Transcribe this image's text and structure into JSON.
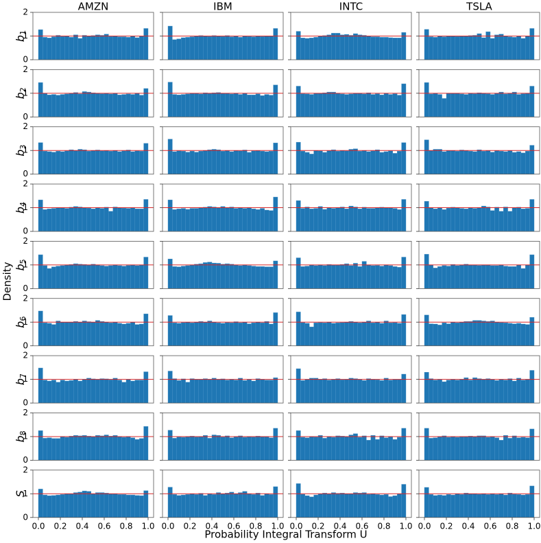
{
  "chart_data": {
    "type": "histogram-grid",
    "xlabel": "Probability Integral Transform U",
    "ylabel": "Density",
    "columns": [
      "AMZN",
      "IBM",
      "INTC",
      "TSLA"
    ],
    "rows": [
      {
        "label": "b",
        "subscript": "1"
      },
      {
        "label": "b",
        "subscript": "2"
      },
      {
        "label": "b",
        "subscript": "3"
      },
      {
        "label": "b",
        "subscript": "4"
      },
      {
        "label": "b",
        "subscript": "5"
      },
      {
        "label": "b",
        "subscript": "6"
      },
      {
        "label": "b",
        "subscript": "7"
      },
      {
        "label": "b",
        "subscript": "8"
      },
      {
        "label": "S"
      }
    ],
    "color": "#1f77b4",
    "reference": 1,
    "reference_color": "#d62728",
    "xlim": [
      -0.05,
      1.05
    ],
    "ylim": [
      0,
      2
    ],
    "xticks": [
      {
        "value": 0,
        "label": "0.0"
      },
      0.2,
      0.4,
      0.6,
      0.8,
      {
        "value": 1,
        "label": "1.0"
      }
    ],
    "yticks": [
      0,
      1,
      2
    ],
    "bins": [
      0,
      0.04,
      0.08,
      0.12,
      0.16,
      0.2,
      0.24,
      0.28,
      0.32,
      0.36,
      0.4,
      0.44,
      0.48,
      0.52,
      0.56,
      0.6,
      0.64,
      0.68,
      0.72,
      0.76,
      0.8,
      0.84,
      0.88,
      0.92,
      0.96,
      1
    ],
    "panels": [
      [
        [
          1.27,
          0.95,
          0.92,
          0.97,
          1.03,
          0.98,
          1.0,
          0.95,
          1.05,
          0.9,
          1.03,
          1.0,
          1.02,
          1.05,
          1.03,
          1.08,
          0.98,
          1.0,
          0.97,
          0.97,
          0.95,
          1.0,
          0.93,
          1.0,
          1.32
        ],
        [
          1.42,
          0.85,
          0.88,
          0.93,
          0.95,
          0.97,
          1.0,
          1.02,
          1.0,
          0.98,
          1.02,
          1.0,
          0.98,
          1.02,
          0.97,
          1.0,
          0.95,
          1.0,
          0.98,
          0.97,
          1.0,
          0.98,
          1.0,
          1.0,
          1.32
        ],
        [
          1.2,
          0.92,
          0.9,
          0.92,
          0.95,
          1.0,
          1.02,
          1.05,
          1.12,
          1.12,
          1.05,
          1.07,
          1.03,
          1.1,
          1.05,
          1.03,
          1.0,
          0.97,
          0.97,
          0.95,
          0.95,
          0.93,
          0.92,
          0.92,
          1.15
        ],
        [
          1.28,
          0.97,
          0.95,
          1.0,
          0.97,
          1.0,
          1.0,
          0.98,
          1.0,
          1.0,
          1.02,
          1.03,
          1.1,
          0.93,
          1.18,
          0.9,
          1.05,
          1.08,
          1.0,
          0.97,
          0.95,
          1.0,
          0.9,
          1.0,
          1.32
        ]
      ],
      [
        [
          1.45,
          1.0,
          0.93,
          0.95,
          0.92,
          0.95,
          0.97,
          1.0,
          1.03,
          0.97,
          1.07,
          1.05,
          1.02,
          1.0,
          0.98,
          1.0,
          0.97,
          1.0,
          0.93,
          0.95,
          0.97,
          0.95,
          1.0,
          0.92,
          1.2
        ],
        [
          1.47,
          0.95,
          0.93,
          0.95,
          0.97,
          1.0,
          1.0,
          0.97,
          1.02,
          1.0,
          1.02,
          1.03,
          1.0,
          1.0,
          0.97,
          1.0,
          0.95,
          1.0,
          0.93,
          0.93,
          0.97,
          0.9,
          0.95,
          0.92,
          1.35
        ],
        [
          1.3,
          0.98,
          0.97,
          0.95,
          1.0,
          1.0,
          1.02,
          1.05,
          1.05,
          1.0,
          0.97,
          0.95,
          0.97,
          1.0,
          1.0,
          0.97,
          1.02,
          0.95,
          0.98,
          0.93,
          1.0,
          0.95,
          0.98,
          0.92,
          1.4
        ],
        [
          1.45,
          0.97,
          1.0,
          0.95,
          0.78,
          1.0,
          1.0,
          1.0,
          0.97,
          0.95,
          1.0,
          0.98,
          1.02,
          1.0,
          0.98,
          0.95,
          1.0,
          1.05,
          0.97,
          1.0,
          1.05,
          0.95,
          0.98,
          1.0,
          1.3
        ]
      ],
      [
        [
          1.33,
          0.97,
          0.95,
          0.93,
          0.97,
          0.95,
          0.98,
          1.03,
          1.0,
          1.05,
          1.03,
          0.97,
          1.0,
          1.02,
          0.98,
          1.0,
          0.97,
          1.0,
          0.95,
          0.98,
          1.02,
          0.95,
          0.98,
          0.97,
          1.3
        ],
        [
          1.48,
          0.95,
          0.98,
          0.97,
          0.93,
          0.97,
          0.93,
          0.97,
          1.0,
          1.03,
          1.05,
          1.03,
          0.97,
          1.0,
          0.95,
          1.0,
          0.98,
          1.02,
          0.92,
          0.98,
          1.0,
          0.97,
          0.95,
          0.97,
          1.32
        ],
        [
          1.35,
          0.97,
          0.92,
          0.85,
          1.0,
          0.98,
          0.92,
          1.0,
          1.03,
          0.97,
          1.0,
          0.98,
          1.05,
          1.07,
          0.97,
          1.0,
          0.95,
          0.98,
          1.03,
          0.92,
          0.95,
          0.98,
          0.88,
          0.97,
          1.33
        ],
        [
          1.45,
          1.0,
          1.05,
          1.05,
          0.95,
          1.0,
          1.0,
          0.97,
          1.02,
          1.0,
          0.97,
          0.95,
          1.03,
          0.97,
          1.0,
          0.93,
          1.0,
          0.97,
          0.95,
          1.0,
          0.92,
          0.95,
          0.9,
          0.97,
          1.22
        ]
      ],
      [
        [
          1.33,
          0.92,
          0.95,
          0.97,
          1.0,
          1.0,
          0.97,
          1.02,
          1.05,
          1.03,
          1.0,
          0.98,
          0.95,
          1.0,
          0.97,
          1.02,
          0.85,
          1.03,
          1.0,
          0.98,
          0.97,
          1.0,
          0.95,
          0.95,
          1.35
        ],
        [
          1.33,
          0.92,
          0.95,
          0.97,
          0.93,
          0.97,
          0.97,
          1.0,
          1.02,
          1.05,
          1.03,
          1.0,
          1.05,
          1.0,
          1.03,
          0.97,
          1.0,
          0.97,
          1.0,
          0.95,
          0.92,
          0.97,
          0.9,
          0.88,
          1.45
        ],
        [
          1.3,
          0.97,
          1.03,
          0.95,
          0.97,
          1.05,
          0.93,
          1.0,
          0.97,
          1.0,
          1.03,
          0.95,
          1.07,
          1.03,
          0.95,
          1.02,
          0.97,
          0.97,
          1.0,
          1.02,
          1.0,
          1.0,
          0.97,
          0.92,
          1.35
        ],
        [
          1.27,
          1.0,
          0.95,
          1.0,
          0.92,
          0.98,
          1.02,
          1.0,
          0.97,
          0.95,
          1.0,
          0.97,
          1.0,
          1.07,
          1.03,
          0.88,
          1.02,
          0.85,
          1.03,
          0.85,
          1.0,
          1.02,
          0.95,
          0.97,
          1.35
        ]
      ],
      [
        [
          1.43,
          0.97,
          0.85,
          0.92,
          0.95,
          0.97,
          1.0,
          1.02,
          1.05,
          1.03,
          1.02,
          1.0,
          1.03,
          1.0,
          0.97,
          0.95,
          0.97,
          1.0,
          0.97,
          0.95,
          0.98,
          1.0,
          0.97,
          1.0,
          1.33
        ],
        [
          1.25,
          0.93,
          0.92,
          0.95,
          0.97,
          1.0,
          1.03,
          1.05,
          1.1,
          1.12,
          1.08,
          1.07,
          1.03,
          1.05,
          1.03,
          1.0,
          0.97,
          1.0,
          0.97,
          0.95,
          0.93,
          0.93,
          0.92,
          0.92,
          1.17
        ],
        [
          1.3,
          0.93,
          0.95,
          1.0,
          0.97,
          1.0,
          0.97,
          1.02,
          1.0,
          1.0,
          1.02,
          1.05,
          0.97,
          1.07,
          0.93,
          1.15,
          1.0,
          0.97,
          0.98,
          0.95,
          1.0,
          0.97,
          0.93,
          0.9,
          1.33
        ],
        [
          1.45,
          1.0,
          0.87,
          0.93,
          0.97,
          0.95,
          1.02,
          0.97,
          1.0,
          1.03,
          1.0,
          1.0,
          0.98,
          1.0,
          1.0,
          0.97,
          0.97,
          1.0,
          0.95,
          0.93,
          0.93,
          1.0,
          0.85,
          1.0,
          1.43
        ]
      ],
      [
        [
          1.47,
          0.97,
          0.95,
          0.9,
          1.05,
          1.0,
          1.0,
          1.0,
          1.03,
          1.0,
          1.05,
          1.02,
          1.0,
          1.07,
          1.03,
          1.0,
          0.97,
          1.0,
          0.95,
          0.92,
          0.95,
          1.0,
          0.9,
          0.92,
          1.35
        ],
        [
          1.28,
          0.97,
          0.95,
          0.98,
          1.0,
          0.97,
          1.0,
          1.03,
          1.0,
          1.05,
          1.0,
          0.97,
          0.95,
          0.98,
          0.97,
          1.02,
          0.97,
          1.0,
          0.93,
          0.97,
          1.0,
          0.97,
          1.03,
          0.92,
          1.4
        ],
        [
          1.43,
          0.98,
          0.95,
          0.8,
          0.97,
          0.98,
          0.97,
          1.0,
          0.95,
          0.97,
          0.98,
          1.0,
          1.03,
          1.0,
          0.97,
          1.0,
          1.05,
          0.97,
          1.0,
          0.95,
          1.05,
          0.97,
          0.98,
          0.95,
          1.32
        ],
        [
          1.3,
          0.93,
          0.92,
          0.88,
          0.97,
          0.93,
          1.0,
          0.97,
          1.0,
          1.03,
          1.03,
          1.07,
          1.07,
          1.05,
          1.03,
          1.05,
          1.0,
          0.98,
          0.97,
          0.95,
          0.93,
          0.95,
          0.92,
          0.9,
          1.2
        ]
      ],
      [
        [
          1.48,
          0.97,
          0.93,
          0.97,
          0.88,
          0.97,
          0.93,
          0.95,
          1.0,
          0.93,
          1.0,
          1.05,
          1.02,
          1.0,
          1.03,
          1.02,
          0.98,
          1.05,
          0.97,
          0.88,
          1.0,
          0.93,
          0.97,
          0.97,
          1.32
        ],
        [
          1.35,
          1.03,
          0.95,
          1.02,
          0.88,
          1.03,
          1.0,
          1.0,
          1.03,
          1.0,
          1.05,
          1.0,
          1.02,
          0.97,
          1.0,
          0.97,
          1.05,
          0.95,
          1.0,
          0.93,
          1.03,
          1.0,
          0.97,
          0.97,
          1.07
        ],
        [
          1.45,
          0.95,
          1.0,
          1.05,
          1.05,
          1.0,
          1.03,
          0.97,
          1.0,
          1.03,
          0.98,
          1.0,
          1.05,
          1.03,
          1.0,
          0.95,
          1.03,
          1.0,
          0.98,
          0.95,
          1.05,
          0.97,
          1.0,
          1.0,
          1.22
        ],
        [
          1.3,
          1.03,
          0.97,
          1.0,
          0.9,
          0.97,
          1.0,
          0.97,
          1.0,
          1.07,
          0.97,
          1.07,
          1.03,
          1.0,
          1.03,
          1.0,
          0.95,
          1.0,
          0.97,
          1.03,
          0.93,
          1.05,
          0.97,
          1.0,
          1.38
        ]
      ],
      [
        [
          1.25,
          0.93,
          0.95,
          0.92,
          0.92,
          1.0,
          0.97,
          1.02,
          1.05,
          1.03,
          1.05,
          1.02,
          1.0,
          1.05,
          1.03,
          1.07,
          1.02,
          1.05,
          1.0,
          0.97,
          1.0,
          0.95,
          0.88,
          0.92,
          1.43
        ],
        [
          1.27,
          0.93,
          0.98,
          0.97,
          1.0,
          1.02,
          0.98,
          1.0,
          1.05,
          0.93,
          1.07,
          1.05,
          0.98,
          1.03,
          0.95,
          1.0,
          1.03,
          0.97,
          1.0,
          0.98,
          1.02,
          1.0,
          1.0,
          0.95,
          1.35
        ],
        [
          1.25,
          0.97,
          0.95,
          1.0,
          0.98,
          1.05,
          0.93,
          1.0,
          0.97,
          1.03,
          1.02,
          1.0,
          1.07,
          1.12,
          0.97,
          1.03,
          0.85,
          1.05,
          0.88,
          1.03,
          0.95,
          1.0,
          0.88,
          0.97,
          1.35
        ],
        [
          1.35,
          0.93,
          0.95,
          1.0,
          1.03,
          0.97,
          1.0,
          0.97,
          1.0,
          1.0,
          1.02,
          1.0,
          1.03,
          1.03,
          0.97,
          1.0,
          0.95,
          0.85,
          1.05,
          0.93,
          1.03,
          0.95,
          0.97,
          0.95,
          1.32
        ]
      ],
      [
        [
          1.2,
          0.95,
          0.92,
          0.93,
          0.95,
          0.97,
          1.0,
          1.0,
          1.05,
          1.07,
          1.12,
          1.1,
          1.0,
          1.05,
          1.05,
          1.03,
          1.0,
          1.0,
          0.97,
          0.97,
          0.95,
          0.95,
          0.93,
          0.92,
          1.13
        ],
        [
          1.28,
          0.97,
          0.93,
          0.95,
          0.97,
          1.0,
          0.97,
          1.02,
          0.93,
          1.0,
          0.97,
          1.05,
          1.0,
          1.03,
          1.07,
          1.0,
          1.05,
          1.1,
          1.0,
          0.97,
          1.03,
          0.93,
          1.0,
          0.97,
          1.3
        ],
        [
          1.43,
          0.98,
          0.92,
          0.87,
          0.95,
          1.0,
          1.03,
          1.0,
          1.05,
          1.02,
          1.03,
          1.0,
          1.0,
          1.05,
          1.03,
          1.05,
          0.98,
          1.0,
          0.97,
          0.95,
          0.97,
          0.88,
          0.92,
          1.0,
          1.4
        ],
        [
          1.27,
          0.97,
          0.93,
          0.95,
          0.93,
          0.97,
          0.95,
          1.0,
          0.97,
          1.03,
          1.0,
          1.0,
          0.98,
          1.0,
          0.97,
          1.0,
          0.97,
          1.0,
          0.95,
          1.03,
          0.98,
          0.97,
          0.95,
          0.97,
          1.33
        ]
      ]
    ]
  }
}
